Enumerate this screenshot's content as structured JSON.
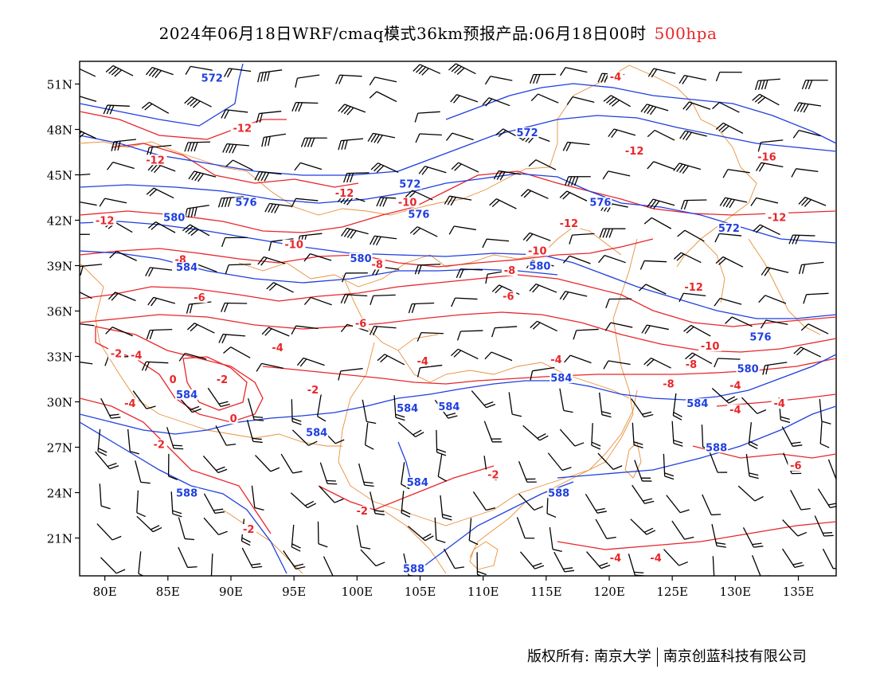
{
  "title": {
    "main": "2024年06月18日WRF/cmaq模式36km预报产品:06月18日00时",
    "level": "500hpa",
    "level_color": "#e8262a"
  },
  "axes": {
    "lat_labels": [
      "51N",
      "48N",
      "45N",
      "42N",
      "39N",
      "36N",
      "33N",
      "30N",
      "27N",
      "24N",
      "21N"
    ],
    "lat_values": [
      51,
      48,
      45,
      42,
      39,
      36,
      33,
      30,
      27,
      24,
      21
    ],
    "lon_labels": [
      "80E",
      "85E",
      "90E",
      "95E",
      "100E",
      "105E",
      "110E",
      "115E",
      "120E",
      "125E",
      "130E",
      "135E"
    ],
    "lon_values": [
      80,
      85,
      90,
      95,
      100,
      105,
      110,
      115,
      120,
      125,
      130,
      135
    ],
    "lon_range": [
      78,
      138
    ],
    "lat_range": [
      18.5,
      52.5
    ]
  },
  "colors": {
    "geopotential": "#1f3fe0",
    "temperature": "#e8262a",
    "boundary": "#e8903a",
    "wind_barb": "#000000"
  },
  "contour_labels": {
    "geopotential": [
      {
        "text": "572",
        "lon": 88.5,
        "lat": 51.2
      },
      {
        "text": "572",
        "lon": 113.5,
        "lat": 47.6
      },
      {
        "text": "572",
        "lon": 104.2,
        "lat": 44.2
      },
      {
        "text": "576",
        "lon": 91.2,
        "lat": 43.0
      },
      {
        "text": "576",
        "lon": 104.9,
        "lat": 42.2
      },
      {
        "text": "576",
        "lon": 119.3,
        "lat": 43.0
      },
      {
        "text": "580",
        "lon": 85.5,
        "lat": 42.0
      },
      {
        "text": "580",
        "lon": 100.3,
        "lat": 39.3
      },
      {
        "text": "580",
        "lon": 114.5,
        "lat": 38.8
      },
      {
        "text": "572",
        "lon": 129.5,
        "lat": 41.3
      },
      {
        "text": "584",
        "lon": 86.5,
        "lat": 38.7
      },
      {
        "text": "576",
        "lon": 132.0,
        "lat": 34.1
      },
      {
        "text": "580",
        "lon": 131.0,
        "lat": 32.0
      },
      {
        "text": "584",
        "lon": 86.5,
        "lat": 30.3
      },
      {
        "text": "584",
        "lon": 104.0,
        "lat": 29.4
      },
      {
        "text": "584",
        "lon": 107.3,
        "lat": 29.5
      },
      {
        "text": "584",
        "lon": 116.2,
        "lat": 31.4
      },
      {
        "text": "584",
        "lon": 96.8,
        "lat": 27.8
      },
      {
        "text": "584",
        "lon": 127.0,
        "lat": 29.7
      },
      {
        "text": "588",
        "lon": 128.5,
        "lat": 26.8
      },
      {
        "text": "584",
        "lon": 104.8,
        "lat": 24.5
      },
      {
        "text": "588",
        "lon": 86.5,
        "lat": 23.8
      },
      {
        "text": "588",
        "lon": 116.0,
        "lat": 23.8
      },
      {
        "text": "588",
        "lon": 104.5,
        "lat": 18.8
      }
    ],
    "temperature": [
      {
        "text": "-4",
        "lon": 120.5,
        "lat": 51.3
      },
      {
        "text": "-12",
        "lon": 90.9,
        "lat": 47.9
      },
      {
        "text": "-12",
        "lon": 84.0,
        "lat": 45.8
      },
      {
        "text": "-12",
        "lon": 122.0,
        "lat": 46.4
      },
      {
        "text": "-16",
        "lon": 132.5,
        "lat": 46.0
      },
      {
        "text": "-12",
        "lon": 99.0,
        "lat": 43.6
      },
      {
        "text": "-10",
        "lon": 104.0,
        "lat": 43.0
      },
      {
        "text": "-12",
        "lon": 133.3,
        "lat": 42.0
      },
      {
        "text": "-12",
        "lon": 116.8,
        "lat": 41.6
      },
      {
        "text": "-12",
        "lon": 80.0,
        "lat": 41.8
      },
      {
        "text": "-10",
        "lon": 95.0,
        "lat": 40.2
      },
      {
        "text": "-10",
        "lon": 114.3,
        "lat": 39.8
      },
      {
        "text": "-8",
        "lon": 86.0,
        "lat": 39.2
      },
      {
        "text": "-8",
        "lon": 101.6,
        "lat": 38.9
      },
      {
        "text": "-8",
        "lon": 112.1,
        "lat": 38.5
      },
      {
        "text": "-12",
        "lon": 126.7,
        "lat": 37.4
      },
      {
        "text": "-6",
        "lon": 87.5,
        "lat": 36.7
      },
      {
        "text": "-6",
        "lon": 112.0,
        "lat": 36.8
      },
      {
        "text": "-6",
        "lon": 100.3,
        "lat": 35.0
      },
      {
        "text": "-10",
        "lon": 128.0,
        "lat": 33.5
      },
      {
        "text": "-4",
        "lon": 93.7,
        "lat": 33.4
      },
      {
        "text": "-8",
        "lon": 126.5,
        "lat": 32.3
      },
      {
        "text": "-8",
        "lon": 124.7,
        "lat": 31.0
      },
      {
        "text": "-4",
        "lon": 130.0,
        "lat": 30.9
      },
      {
        "text": "-2",
        "lon": 80.9,
        "lat": 33.0
      },
      {
        "text": "-4",
        "lon": 82.5,
        "lat": 32.9
      },
      {
        "text": "-4",
        "lon": 105.2,
        "lat": 32.5
      },
      {
        "text": "-4",
        "lon": 115.8,
        "lat": 32.6
      },
      {
        "text": "0",
        "lon": 85.4,
        "lat": 31.3
      },
      {
        "text": "-2",
        "lon": 89.3,
        "lat": 31.3
      },
      {
        "text": "-2",
        "lon": 96.5,
        "lat": 30.6
      },
      {
        "text": "-4",
        "lon": 82.0,
        "lat": 29.7
      },
      {
        "text": "-4",
        "lon": 130.0,
        "lat": 29.3
      },
      {
        "text": "-4",
        "lon": 133.5,
        "lat": 29.7
      },
      {
        "text": "0",
        "lon": 90.2,
        "lat": 28.7
      },
      {
        "text": "-2",
        "lon": 84.3,
        "lat": 27.0
      },
      {
        "text": "-6",
        "lon": 134.8,
        "lat": 25.6
      },
      {
        "text": "-2",
        "lon": 110.8,
        "lat": 25.0
      },
      {
        "text": "-2",
        "lon": 100.4,
        "lat": 22.6
      },
      {
        "text": "-2",
        "lon": 91.4,
        "lat": 21.4
      },
      {
        "text": "-4",
        "lon": 120.5,
        "lat": 19.5
      },
      {
        "text": "-4",
        "lon": 123.7,
        "lat": 19.5
      }
    ]
  },
  "footer": {
    "copyright": "版权所有: 南京大学",
    "company": "南京创蓝科技有限公司"
  }
}
